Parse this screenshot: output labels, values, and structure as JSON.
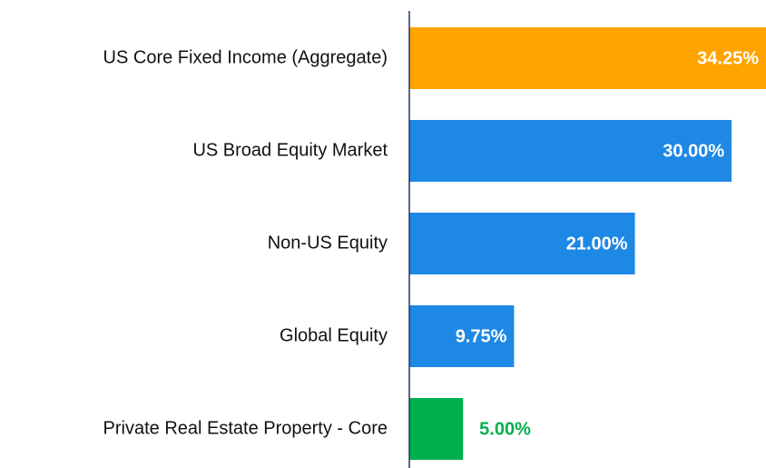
{
  "chart_data": {
    "type": "bar",
    "orientation": "horizontal",
    "categories": [
      "US Core Fixed Income (Aggregate)",
      "US Broad Equity Market",
      "Non-US Equity",
      "Global Equity",
      "Private Real Estate Property - Core"
    ],
    "values": [
      34.25,
      30.0,
      21.0,
      9.75,
      5.0
    ],
    "value_labels": [
      "34.25%",
      "30.00%",
      "21.00%",
      "9.75%",
      "5.00%"
    ],
    "colors": [
      "#ffa300",
      "#1e88e5",
      "#1e88e5",
      "#1e88e5",
      "#00b04f"
    ],
    "xlim": [
      0,
      33.2
    ]
  }
}
